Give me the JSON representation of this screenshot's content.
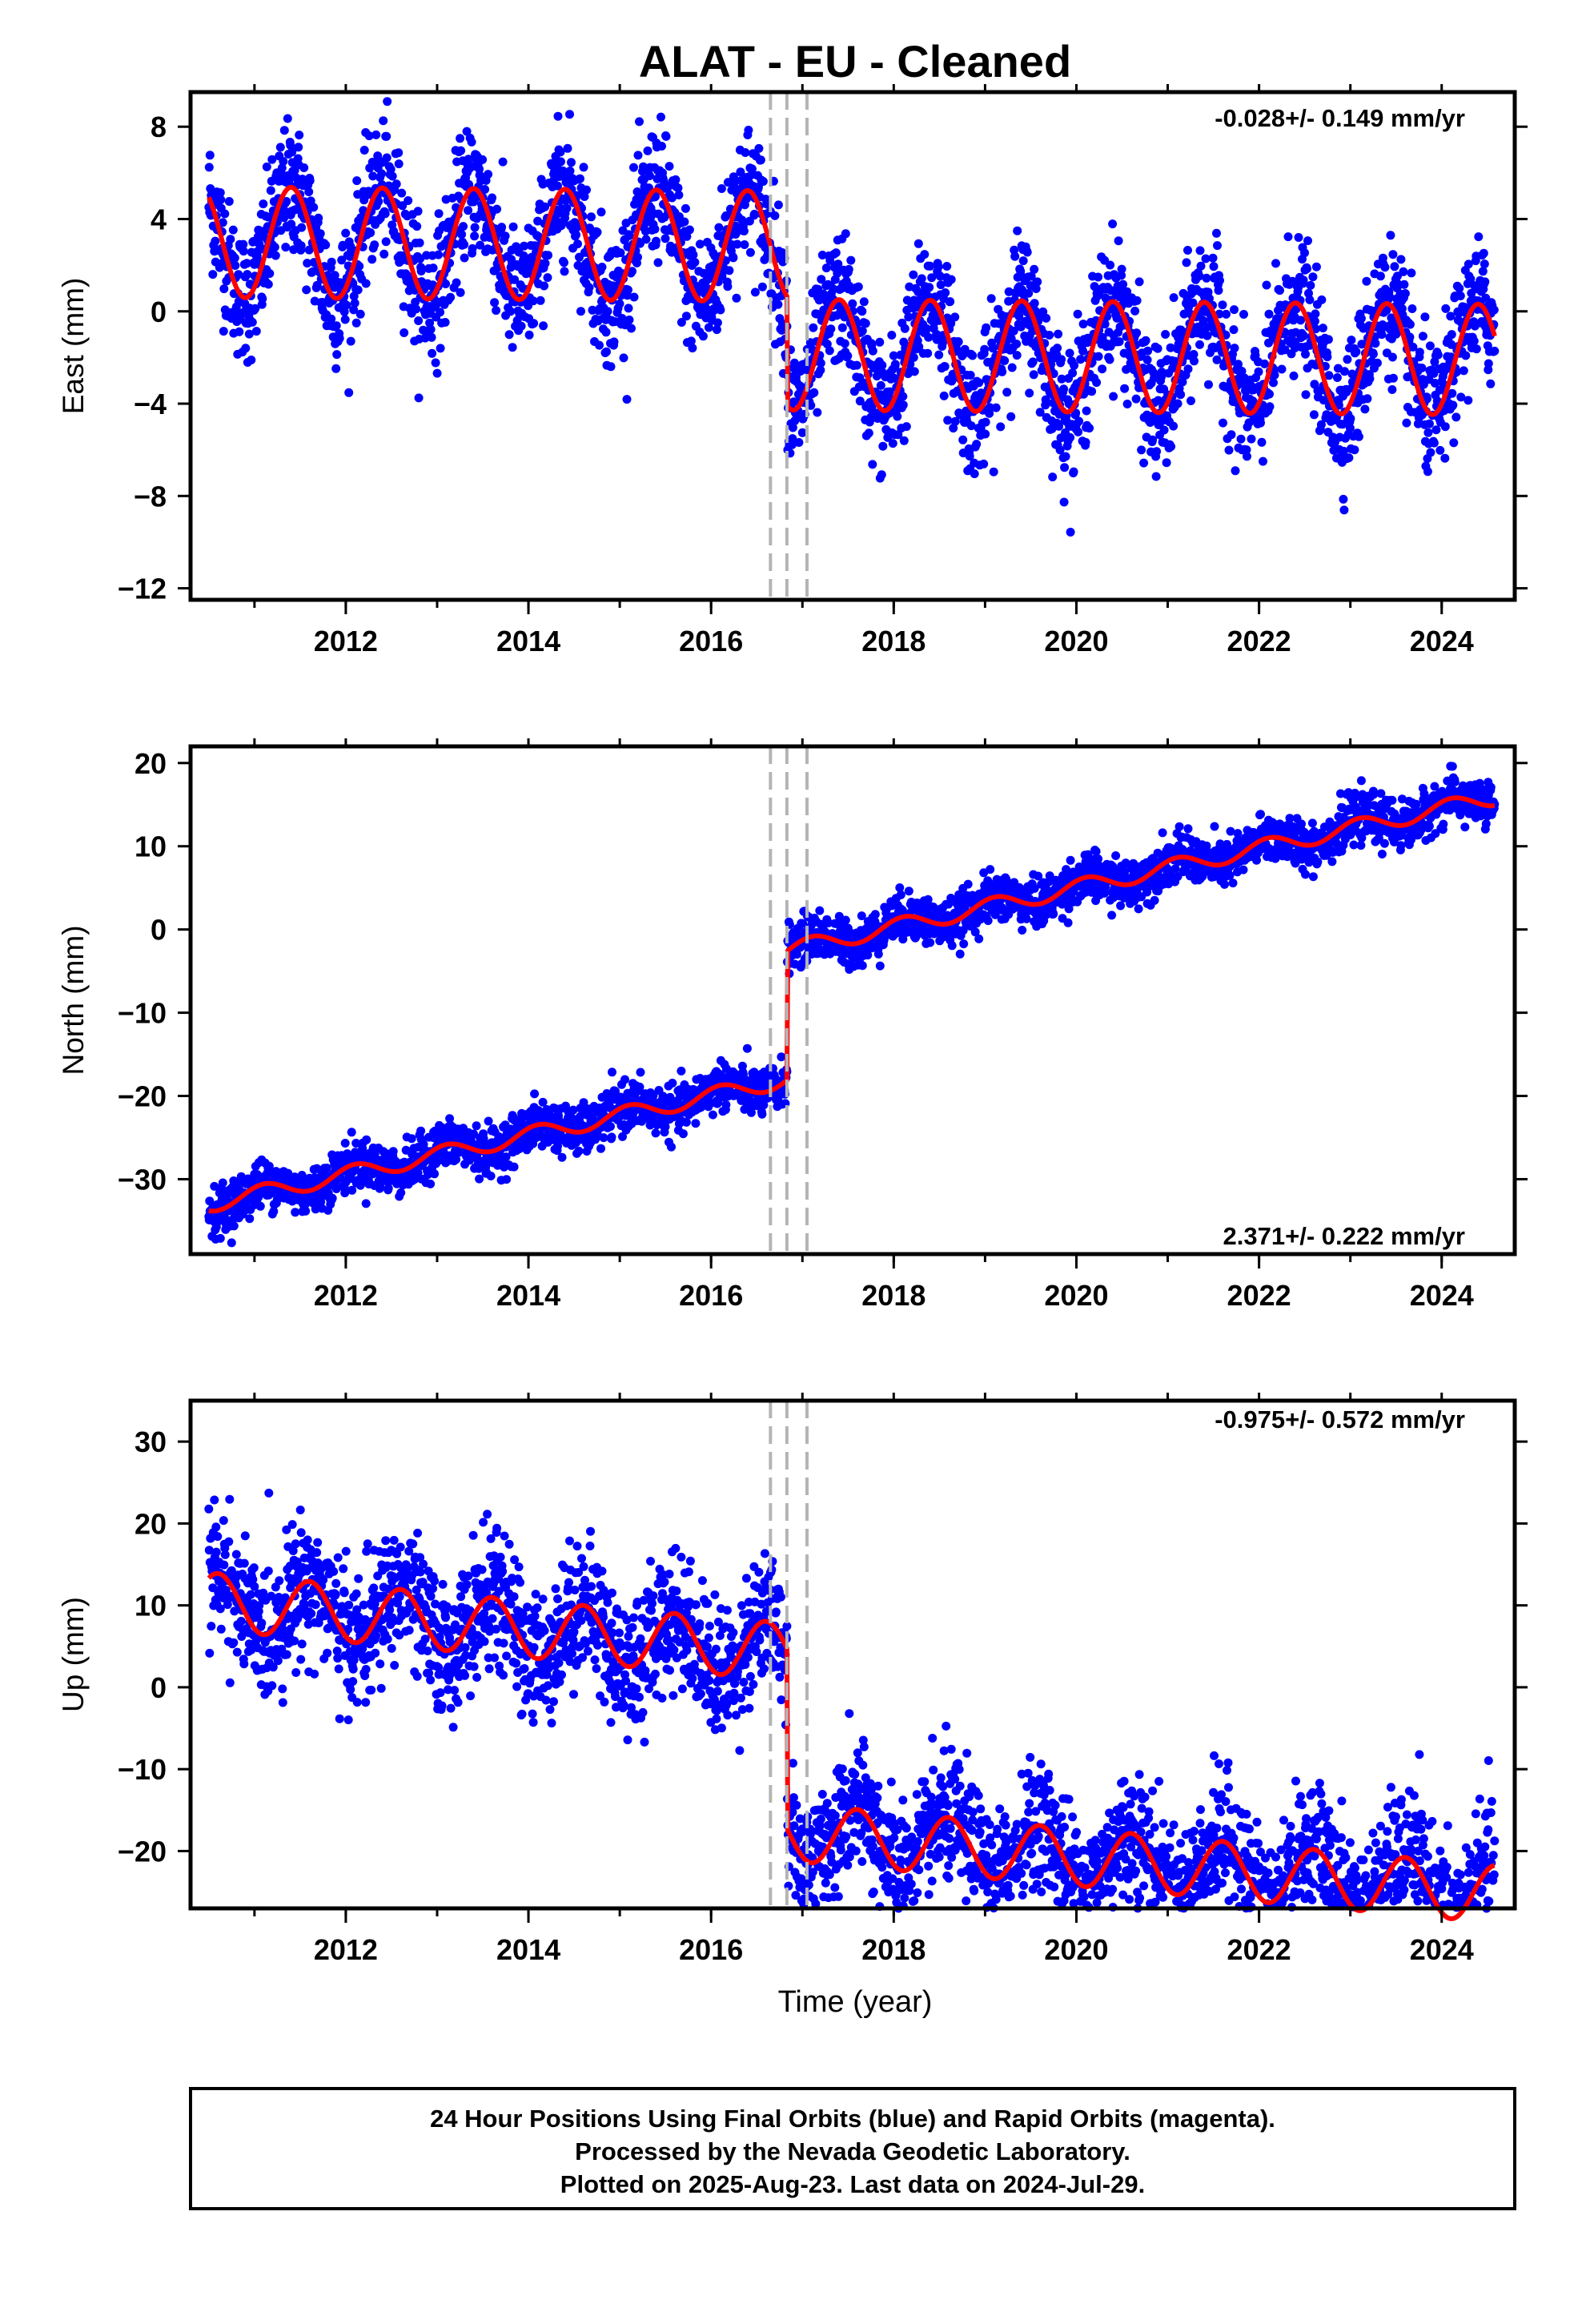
{
  "title": "ALAT  - EU - Cleaned",
  "xlabel": "Time (year)",
  "footer": {
    "line1": "24 Hour Positions Using Final Orbits (blue) and Rapid Orbits (magenta).",
    "line2": "Processed by the Nevada Geodetic Laboratory.",
    "line3": "Plotted on 2025-Aug-23. Last data on 2024-Jul-29."
  },
  "colors": {
    "points": "#0000ff",
    "model": "#ff0000",
    "steps": "#b4b4b4"
  },
  "chart_data": [
    {
      "type": "scatter",
      "ylabel": "East (mm)",
      "rate": "-0.028+/- 0.149 mm/yr",
      "xlim": [
        2010.3,
        2024.8
      ],
      "ylim": [
        -12.5,
        9.5
      ],
      "xticks": [
        2012,
        2014,
        2016,
        2018,
        2020,
        2022,
        2024
      ],
      "yticks": [
        8,
        4,
        0,
        -4,
        -8,
        -12
      ],
      "offset_lines_x": [
        2016.65,
        2016.83,
        2017.05
      ],
      "model": {
        "start": 2010.5,
        "end": 2024.58,
        "offsets": [
          [
            2010.5,
            3.0
          ],
          [
            2016.83,
            -1.7
          ]
        ],
        "trend": -0.028,
        "annual_amplitude": 2.4,
        "peak_year_fraction": 0.4,
        "noise": 1.4
      },
      "series": [
        {
          "name": "East"
        }
      ]
    },
    {
      "type": "scatter",
      "ylabel": "North (mm)",
      "rate": "2.371+/- 0.222 mm/yr",
      "xlim": [
        2010.3,
        2024.8
      ],
      "ylim": [
        -39,
        22
      ],
      "xticks": [
        2012,
        2014,
        2016,
        2018,
        2020,
        2022,
        2024
      ],
      "yticks": [
        20,
        10,
        0,
        -10,
        -20,
        -30
      ],
      "offset_lines_x": [
        2016.65,
        2016.83,
        2017.05
      ],
      "model": {
        "start": 2010.5,
        "end": 2024.58,
        "offsets": [
          [
            2010.5,
            -33.0
          ],
          [
            2016.83,
            -17.5
          ]
        ],
        "trend": 2.371,
        "annual_amplitude": 1.0,
        "peak_year_fraction": 0.1,
        "noise": 1.4
      },
      "series": [
        {
          "name": "North"
        }
      ]
    },
    {
      "type": "scatter",
      "ylabel": "Up (mm)",
      "rate": "-0.975+/- 0.572 mm/yr",
      "xlim": [
        2010.3,
        2024.8
      ],
      "ylim": [
        -27,
        35
      ],
      "xticks": [
        2012,
        2014,
        2016,
        2018,
        2020,
        2022,
        2024
      ],
      "yticks": [
        30,
        20,
        10,
        0,
        -10,
        -20
      ],
      "offset_lines_x": [
        2016.65,
        2016.83,
        2017.05
      ],
      "model": {
        "start": 2010.5,
        "end": 2024.58,
        "offsets": [
          [
            2010.5,
            10.5
          ],
          [
            2016.83,
            -11.5
          ]
        ],
        "trend": -0.975,
        "annual_amplitude": 3.5,
        "peak_year_fraction": 0.6,
        "noise": 4.0
      },
      "series": [
        {
          "name": "Up"
        }
      ]
    }
  ]
}
